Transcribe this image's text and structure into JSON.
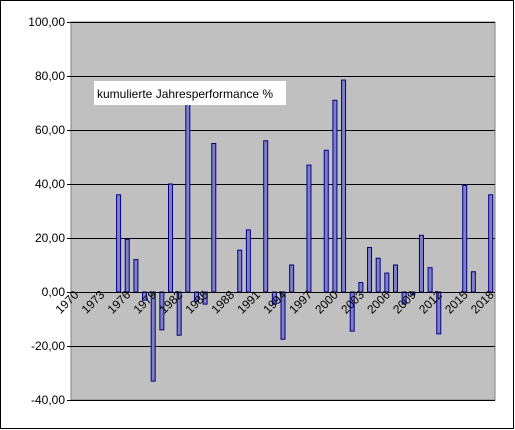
{
  "chart_data": {
    "type": "bar",
    "title": "",
    "xlabel": "",
    "ylabel": "",
    "ylim": [
      -40,
      100
    ],
    "yticks": [
      -40,
      -20,
      0,
      20,
      40,
      60,
      80,
      100
    ],
    "ytick_labels": [
      "-40,00",
      "-20,00",
      "0,00",
      "20,00",
      "40,00",
      "60,00",
      "80,00",
      "100,00"
    ],
    "grid": true,
    "legend": "none",
    "x_tick_labels": [
      "1970",
      "1973",
      "1976",
      "1979",
      "1982",
      "1985",
      "1988",
      "1991",
      "1994",
      "1997",
      "2000",
      "2003",
      "2006",
      "2009",
      "2012",
      "2015",
      "2018"
    ],
    "categories": [
      "1970",
      "1971",
      "1972",
      "1973",
      "1974",
      "1975",
      "1976",
      "1977",
      "1978",
      "1979",
      "1980",
      "1981",
      "1982",
      "1983",
      "1984",
      "1985",
      "1986",
      "1987",
      "1988",
      "1989",
      "1990",
      "1991",
      "1992",
      "1993",
      "1994",
      "1995",
      "1996",
      "1997",
      "1998",
      "1999",
      "2000",
      "2001",
      "2002",
      "2003",
      "2004",
      "2005",
      "2006",
      "2007",
      "2008",
      "2009",
      "2010",
      "2011",
      "2012",
      "2013",
      "2014",
      "2015",
      "2016",
      "2017",
      "2018"
    ],
    "series": [
      {
        "name": "kumulierte Jahresperformance %",
        "values": [
          0,
          0,
          0,
          0,
          0,
          36,
          19.5,
          12,
          -3,
          -33,
          -14,
          40,
          -16,
          72,
          -3.5,
          -4.5,
          55,
          0,
          0,
          15.5,
          23,
          0,
          56,
          -4.5,
          -17.5,
          10,
          0,
          47,
          0,
          52.5,
          71,
          78.5,
          -14.5,
          3.5,
          16.5,
          12.5,
          7,
          10,
          -4.5,
          -1,
          21,
          9,
          -15.5,
          0,
          0,
          39.5,
          7.5,
          0,
          36
        ]
      }
    ],
    "annotation": "kumulierte Jahresperformance %",
    "colors": {
      "plot_background": "#c0c0c0",
      "bar_fill": "#8080c8",
      "bar_stroke": "#000080",
      "gridline": "#000000",
      "annotation_background": "#ffffff",
      "outer_background": "#ffffff"
    }
  }
}
